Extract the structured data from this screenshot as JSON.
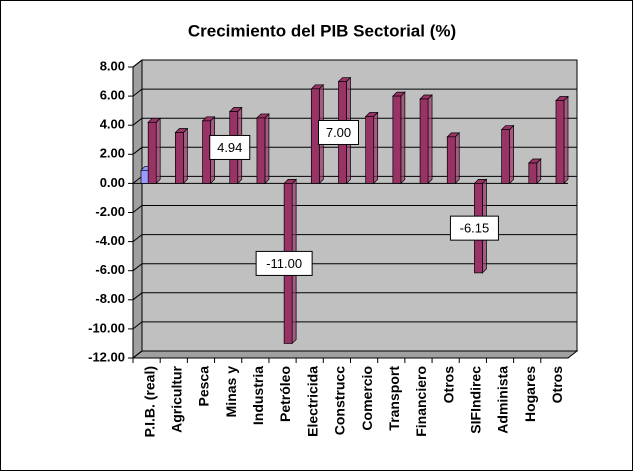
{
  "chart_data": {
    "type": "bar",
    "title": "Crecimiento del PIB Sectorial (%)",
    "categories": [
      "P.I.B. (real)",
      "Agricultur",
      "Pesca",
      "Minas y",
      "Industria",
      "Petróleo",
      "Electricida",
      "Construcc",
      "Comercio",
      "Transport",
      "Financiero",
      "Otros",
      "SIFIndirec",
      "Administa",
      "Hogares",
      "Otros"
    ],
    "series": [
      {
        "color": "#9999ff",
        "values": [
          0.9,
          null,
          null,
          null,
          null,
          null,
          null,
          null,
          null,
          null,
          null,
          null,
          null,
          null,
          null,
          null
        ]
      },
      {
        "color": "#993366",
        "values": [
          4.2,
          3.5,
          4.3,
          4.94,
          4.5,
          -11.0,
          6.5,
          7.0,
          4.6,
          6.0,
          5.8,
          3.2,
          -6.15,
          3.7,
          1.4,
          5.7
        ],
        "value_labels": [
          null,
          null,
          null,
          "4.94",
          null,
          "-11.00",
          null,
          "7.00",
          null,
          null,
          null,
          null,
          "-6.15",
          null,
          null,
          null
        ]
      }
    ],
    "ylim": [
      -12,
      8
    ],
    "yticks": [
      {
        "value": -12,
        "label": "-12.00"
      },
      {
        "value": -10,
        "label": "-10.00"
      },
      {
        "value": -8,
        "label": "-8.00"
      },
      {
        "value": -6,
        "label": "-6.00"
      },
      {
        "value": -4,
        "label": "-4.00"
      },
      {
        "value": -2,
        "label": "-2.00"
      },
      {
        "value": 0,
        "label": "0.00"
      },
      {
        "value": 2,
        "label": "2.00"
      },
      {
        "value": 4,
        "label": "4.00"
      },
      {
        "value": 6,
        "label": "6.00"
      },
      {
        "value": 8,
        "label": "8.00"
      }
    ],
    "grid": true
  }
}
